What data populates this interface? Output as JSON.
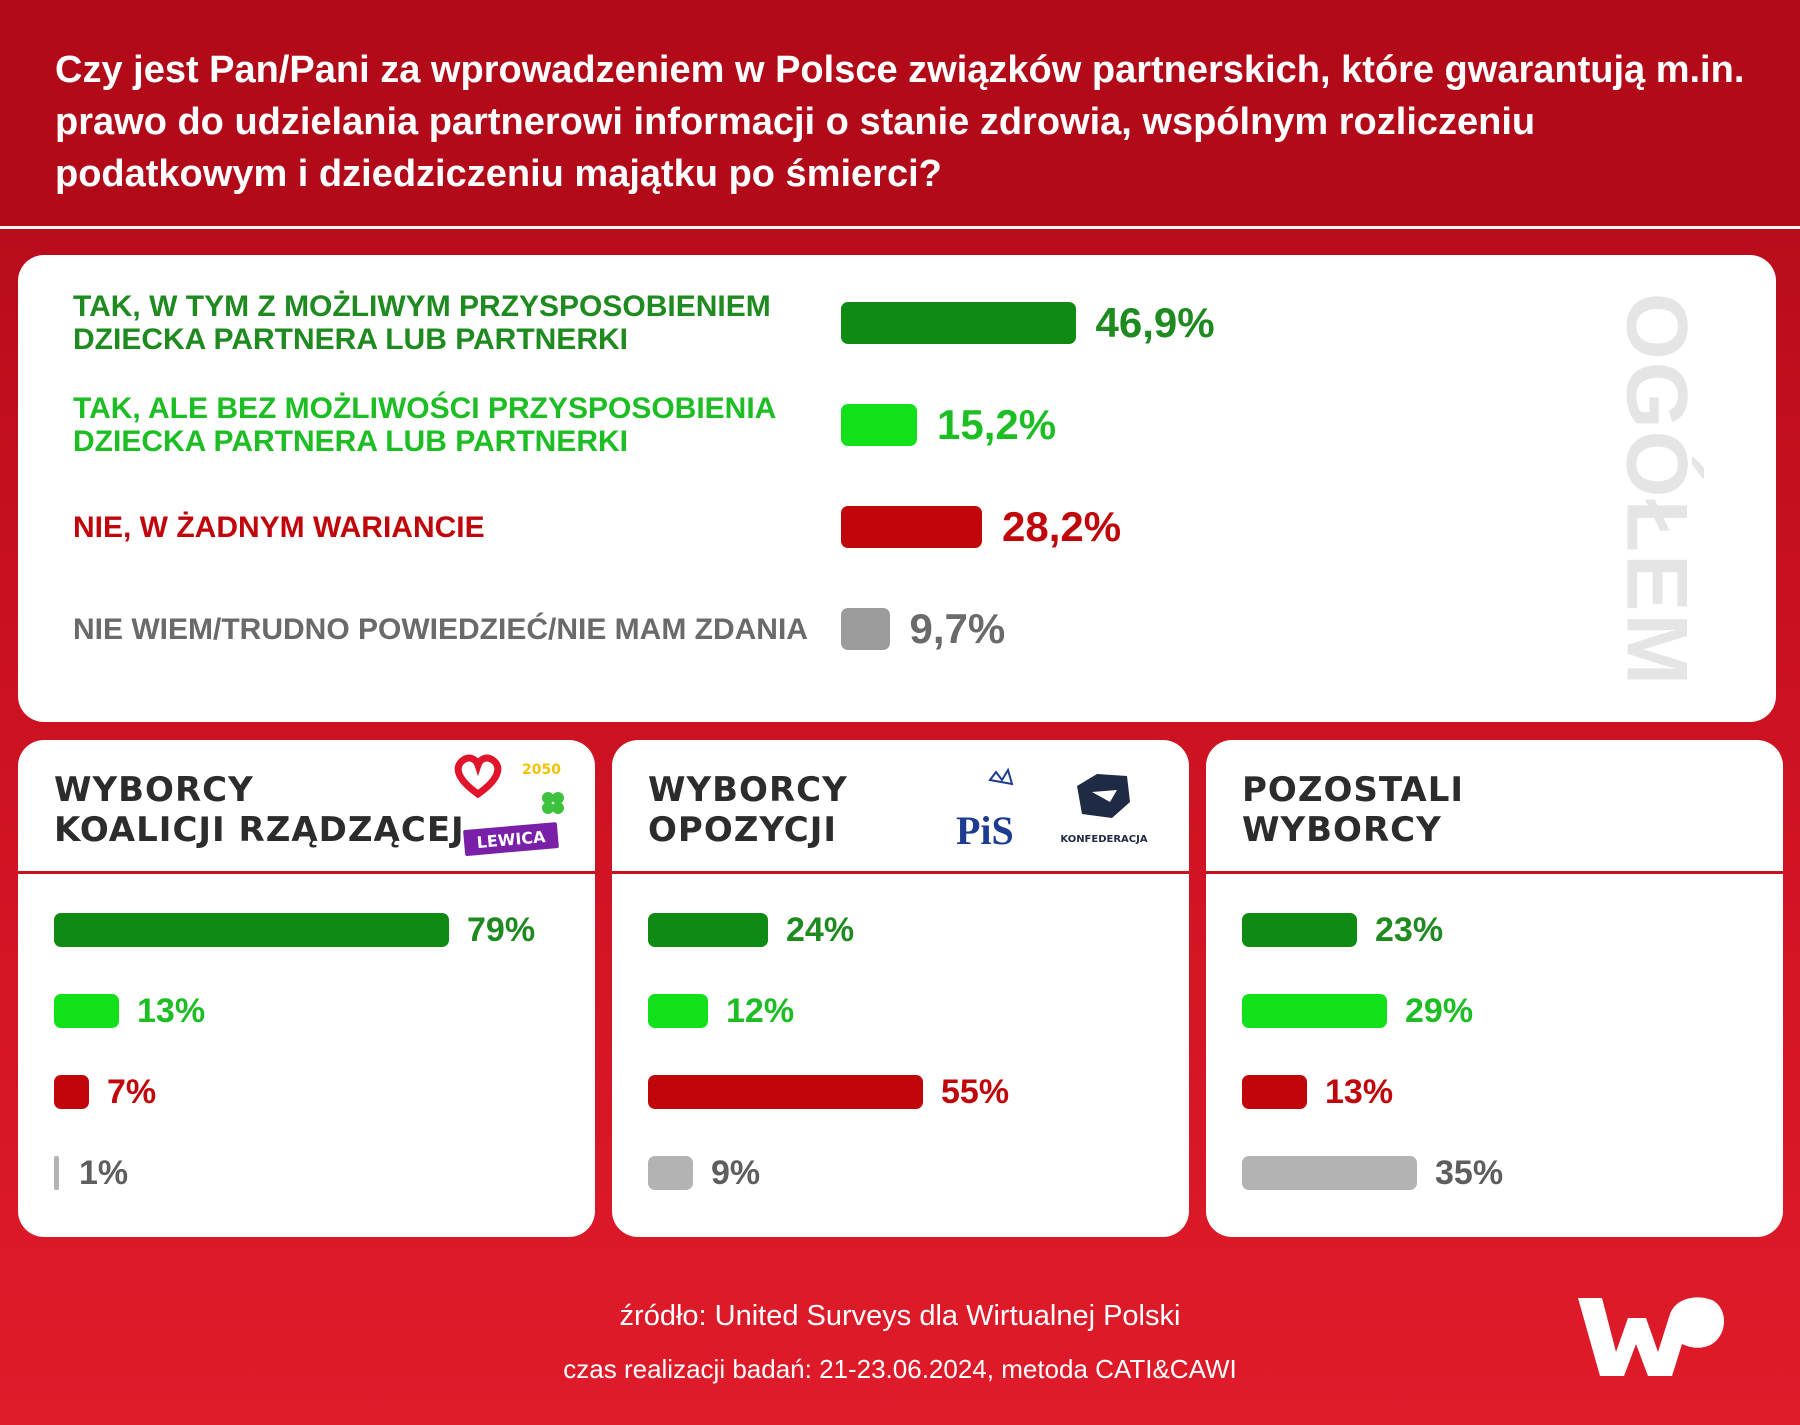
{
  "title": "Czy jest Pan/Pani za wprowadzeniem w Polsce związków partnerskich, które gwarantują m.in. prawo do udzielania partnerowi informacji o stanie zdrowia, wspólnym rozliczeniu podatkowym i dziedziczeniu majątku po śmierci?",
  "overall": {
    "label": "OGÓŁEM",
    "rows": [
      {
        "label": "TAK, W TYM Z MOŻLIWYM PRZYSPOSOBIENIEM\nDZIECKA PARTNERA LUB PARTNERKI",
        "value": 46.9,
        "value_text": "46,9%",
        "color": "#0f8a12",
        "text_color": "#1f8a1f"
      },
      {
        "label": "TAK, ALE BEZ MOŻLIWOŚCI PRZYSPOSOBIENIA\nDZIECKA PARTNERA LUB PARTNERKI",
        "value": 15.2,
        "value_text": "15,2%",
        "color": "#12e01a",
        "text_color": "#1dbd24"
      },
      {
        "label": "NIE, W ŻADNYM WARIANCIE",
        "value": 28.2,
        "value_text": "28,2%",
        "color": "#c0060a",
        "text_color": "#c0060a"
      },
      {
        "label": "NIE WIEM/TRUDNO POWIEDZIEĆ/NIE MAM ZDANIA",
        "value": 9.7,
        "value_text": "9,7%",
        "color": "#9b9b9b",
        "text_color": "#6a6a6a"
      }
    ]
  },
  "groups": [
    {
      "title": "WYBORCY\nKOALICJI RZĄDZĄCEJ",
      "logos": {
        "lewica": "LEWICA",
        "trzecia_droga": "2050"
      },
      "values": [
        79,
        13,
        7,
        1
      ],
      "value_texts": [
        "79%",
        "13%",
        "7%",
        "1%"
      ]
    },
    {
      "title": "WYBORCY\nOPOZYCJI",
      "logos": {
        "pis": "PiS",
        "konfederacja": "KONFEDERACJA"
      },
      "values": [
        24,
        12,
        55,
        9
      ],
      "value_texts": [
        "24%",
        "12%",
        "55%",
        "9%"
      ]
    },
    {
      "title": "POZOSTALI\nWYBORCY",
      "values": [
        23,
        29,
        13,
        35
      ],
      "value_texts": [
        "23%",
        "29%",
        "13%",
        "35%"
      ]
    }
  ],
  "group_colors": [
    "#0f8a12",
    "#12e01a",
    "#c0060a",
    "#b3b3b3"
  ],
  "group_text_colors": [
    "#1f8a1f",
    "#1dbd24",
    "#c0060a",
    "#5e5e5e"
  ],
  "footer": {
    "source": "źródło: United Surveys dla Wirtualnej Polski",
    "date": "czas realizacji badań: 21-23.06.2024, metoda CATI&CAWI"
  },
  "chart_data": [
    {
      "type": "bar",
      "title": "OGÓŁEM",
      "categories": [
        "TAK, W TYM Z MOŻLIWYM PRZYSPOSOBIENIEM DZIECKA PARTNERA LUB PARTNERKI",
        "TAK, ALE BEZ MOŻLIWOŚCI PRZYSPOSOBIENIA DZIECKA PARTNERA LUB PARTNERKI",
        "NIE, W ŻADNYM WARIANCIE",
        "NIE WIEM/TRUDNO POWIEDZIEĆ/NIE MAM ZDANIA"
      ],
      "values": [
        46.9,
        15.2,
        28.2,
        9.7
      ],
      "orientation": "horizontal"
    },
    {
      "type": "bar",
      "title": "WYBORCY KOALICJI RZĄDZĄCEJ",
      "values": [
        79,
        13,
        7,
        1
      ],
      "orientation": "horizontal"
    },
    {
      "type": "bar",
      "title": "WYBORCY OPOZYCJI",
      "values": [
        24,
        12,
        55,
        9
      ],
      "orientation": "horizontal"
    },
    {
      "type": "bar",
      "title": "POZOSTALI WYBORCY",
      "values": [
        23,
        29,
        13,
        35
      ],
      "orientation": "horizontal"
    }
  ]
}
